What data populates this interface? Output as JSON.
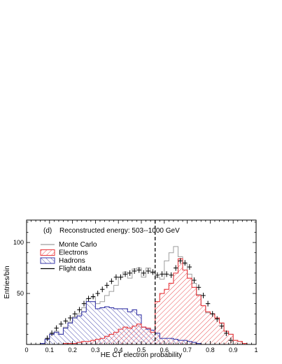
{
  "chart_data": {
    "type": "histogram",
    "panel_label": "(d)",
    "annotation": "Reconstructed energy: 503--1000 GeV",
    "xlabel": "HE CT electron probability",
    "ylabel": "Entries/bin",
    "xlim": [
      0,
      1
    ],
    "ylim": [
      0,
      122
    ],
    "x_ticks": [
      "0",
      "0.1",
      "0.2",
      "0.3",
      "0.4",
      "0.5",
      "0.6",
      "0.7",
      "0.8",
      "0.9",
      "1"
    ],
    "y_ticks": [
      "50",
      "100"
    ],
    "cut_line_x": 0.56,
    "bin_edges_start": 0.0,
    "bin_width": 0.02,
    "legend": {
      "placement": "top-left",
      "entries": [
        {
          "label": "Monte Carlo",
          "color": "#9e9e9e",
          "style": "line"
        },
        {
          "label": "Electrons",
          "color": "#e8383d",
          "style": "hatch-red"
        },
        {
          "label": "Hadrons",
          "color": "#3a3aa8",
          "style": "hatch-blue"
        },
        {
          "label": "Flight data",
          "color": "#000000",
          "style": "line"
        }
      ]
    },
    "series": [
      {
        "name": "Monte Carlo",
        "color": "#9e9e9e",
        "values": [
          0,
          0,
          0,
          1,
          5,
          10,
          13,
          10,
          17,
          22,
          27,
          30,
          36,
          45,
          46,
          40,
          42,
          48,
          52,
          58,
          66,
          71,
          65,
          74,
          75,
          66,
          75,
          70,
          66,
          64,
          82,
          90,
          96,
          86,
          79,
          69,
          60,
          49,
          38,
          31,
          30,
          26,
          21,
          13,
          10,
          4,
          3,
          1,
          0,
          0
        ]
      },
      {
        "name": "Electrons",
        "color": "#e8383d",
        "values": [
          0,
          0,
          0,
          0,
          0,
          0,
          0,
          0,
          1,
          1,
          1,
          2,
          3,
          3,
          4,
          5,
          6,
          8,
          10,
          12,
          15,
          17,
          16,
          18,
          20,
          17,
          16,
          12,
          42,
          50,
          54,
          60,
          70,
          84,
          73,
          65,
          56,
          48,
          38,
          32,
          30,
          26,
          21,
          13,
          10,
          4,
          3,
          1,
          0,
          0
        ]
      },
      {
        "name": "Hadrons",
        "color": "#3a3aa8",
        "values": [
          0,
          0,
          0,
          1,
          5,
          10,
          12,
          10,
          16,
          21,
          26,
          28,
          32,
          42,
          42,
          35,
          36,
          37,
          36,
          35,
          35,
          35,
          32,
          34,
          29,
          17,
          15,
          14,
          11,
          6,
          6,
          6,
          5,
          4,
          4,
          3,
          2,
          1,
          0,
          0,
          0,
          0,
          0,
          0,
          0,
          0,
          0,
          0,
          0,
          0
        ]
      },
      {
        "name": "Flight data",
        "color": "#000000",
        "x": [
          0.09,
          0.11,
          0.13,
          0.15,
          0.17,
          0.19,
          0.21,
          0.23,
          0.25,
          0.27,
          0.29,
          0.31,
          0.33,
          0.35,
          0.37,
          0.39,
          0.41,
          0.43,
          0.45,
          0.47,
          0.49,
          0.51,
          0.53,
          0.55,
          0.57,
          0.59,
          0.61,
          0.63,
          0.65,
          0.67,
          0.69,
          0.71,
          0.73,
          0.75,
          0.77,
          0.79,
          0.81,
          0.83,
          0.85,
          0.87,
          0.89
        ],
        "y": [
          6,
          11,
          16,
          20,
          23,
          26,
          30,
          34,
          40,
          45,
          47,
          50,
          54,
          58,
          62,
          66,
          66,
          69,
          70,
          72,
          73,
          70,
          72,
          71,
          68,
          69,
          69,
          68,
          75,
          82,
          80,
          76,
          63,
          56,
          48,
          40,
          30,
          25,
          18,
          11,
          4
        ]
      }
    ]
  }
}
